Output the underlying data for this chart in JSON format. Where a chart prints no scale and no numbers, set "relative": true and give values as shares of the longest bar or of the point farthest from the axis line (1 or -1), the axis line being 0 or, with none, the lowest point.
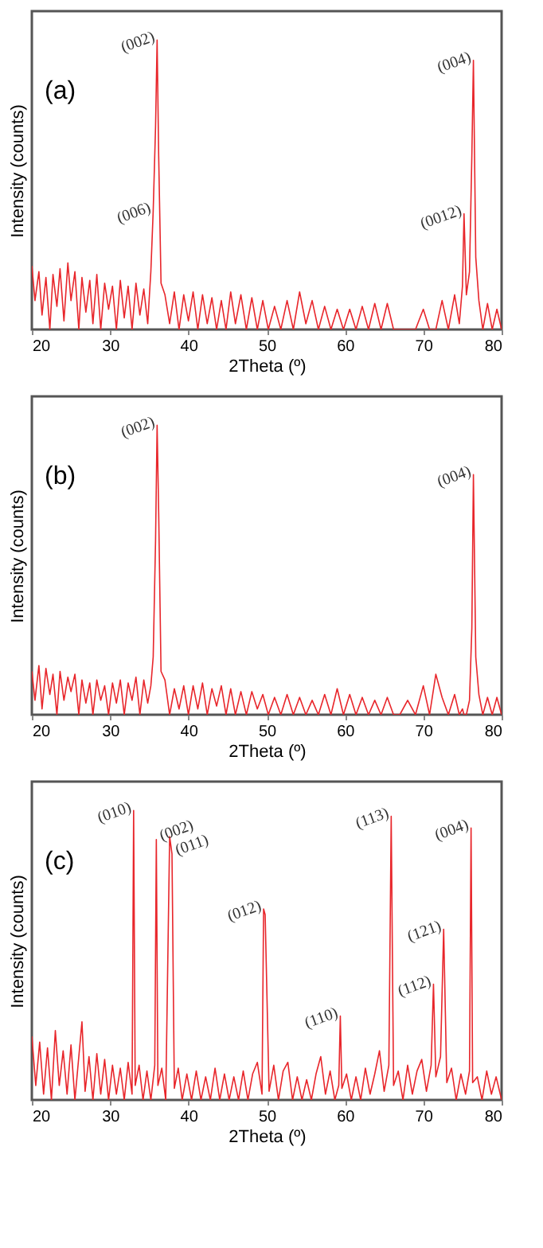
{
  "chart_data": [
    {
      "type": "line",
      "title": "(a)",
      "xlabel": "2Theta (º)",
      "ylabel": "Intensity (counts)",
      "relative": true,
      "xlim": [
        20,
        80
      ],
      "xticks": [
        20,
        30,
        40,
        50,
        60,
        70,
        80
      ],
      "x": [
        20,
        20.4,
        20.9,
        21.3,
        21.8,
        22.3,
        22.7,
        23.2,
        23.6,
        24.1,
        24.6,
        25,
        25.5,
        26,
        26.4,
        26.9,
        27.4,
        27.8,
        28.3,
        28.8,
        29.3,
        29.8,
        30.3,
        30.8,
        31.3,
        31.8,
        32.3,
        32.8,
        33.3,
        33.8,
        34.3,
        34.8,
        35.2,
        35.5,
        35.8,
        36.0,
        36.2,
        36.5,
        37,
        37.6,
        38.2,
        38.8,
        39.4,
        40,
        40.6,
        41.2,
        41.8,
        42.4,
        43,
        43.6,
        44.2,
        44.8,
        45.4,
        46,
        46.7,
        47.4,
        48.1,
        48.8,
        49.5,
        50.2,
        51,
        51.8,
        52.6,
        53.4,
        54.2,
        55,
        55.8,
        56.6,
        57.4,
        58.2,
        59,
        59.8,
        60.6,
        61.4,
        62.2,
        63,
        63.8,
        64.6,
        65.4,
        66.2,
        67,
        68,
        69,
        70,
        70.8,
        71.6,
        72.4,
        73.2,
        74,
        74.6,
        75,
        75.2,
        75.5,
        75.9,
        76.2,
        76.4,
        76.7,
        77.1,
        77.6,
        78.2,
        78.8,
        79.4,
        80
      ],
      "series": [
        {
          "color": "#e8262b",
          "values": [
            0.22,
            0.1,
            0.2,
            0.05,
            0.18,
            0.0,
            0.19,
            0.08,
            0.21,
            0.03,
            0.23,
            0.1,
            0.2,
            0.0,
            0.18,
            0.06,
            0.17,
            0.02,
            0.19,
            0.0,
            0.16,
            0.07,
            0.15,
            0.0,
            0.17,
            0.04,
            0.15,
            0.0,
            0.16,
            0.05,
            0.14,
            0.02,
            0.2,
            0.41,
            0.7,
            1,
            0.6,
            0.16,
            0.12,
            0.02,
            0.13,
            0.0,
            0.12,
            0.03,
            0.13,
            0.0,
            0.12,
            0.02,
            0.11,
            0.0,
            0.1,
            0.0,
            0.13,
            0.02,
            0.12,
            0.0,
            0.11,
            0.0,
            0.1,
            0.0,
            0.08,
            0.0,
            0.1,
            0.0,
            0.13,
            0.02,
            0.1,
            0.0,
            0.08,
            0.0,
            0.07,
            0.0,
            0.07,
            0.0,
            0.08,
            0.0,
            0.09,
            0.0,
            0.09,
            0.0,
            0.0,
            0.0,
            0.0,
            0.07,
            0.0,
            0.0,
            0.1,
            0.0,
            0.12,
            0.02,
            0.15,
            0.4,
            0.12,
            0.2,
            0.6,
            0.93,
            0.25,
            0.1,
            0.0,
            0.09,
            0.0,
            0.07,
            0.0
          ]
        }
      ],
      "annotations": [
        {
          "text": "(006)",
          "x": 35.5,
          "y": 0.41
        },
        {
          "text": "(002)",
          "x": 36.0,
          "y": 1
        },
        {
          "text": "(0012)",
          "x": 75.2,
          "y": 0.4
        },
        {
          "text": "(004)",
          "x": 76.4,
          "y": 0.93
        }
      ]
    },
    {
      "type": "line",
      "title": "(b)",
      "xlabel": "2Theta (º)",
      "ylabel": "Intensity (counts)",
      "relative": true,
      "xlim": [
        20,
        80
      ],
      "xticks": [
        20,
        30,
        40,
        50,
        60,
        70,
        80
      ],
      "x": [
        20,
        20.4,
        20.9,
        21.3,
        21.8,
        22.3,
        22.7,
        23.2,
        23.6,
        24.1,
        24.6,
        25,
        25.5,
        26,
        26.4,
        26.9,
        27.4,
        27.8,
        28.3,
        28.8,
        29.3,
        29.8,
        30.3,
        30.8,
        31.3,
        31.8,
        32.3,
        32.8,
        33.3,
        33.8,
        34.3,
        34.8,
        35.2,
        35.5,
        35.8,
        36.0,
        36.2,
        36.5,
        37,
        37.6,
        38.2,
        38.8,
        39.4,
        40,
        40.6,
        41.2,
        41.8,
        42.4,
        43,
        43.6,
        44.2,
        44.8,
        45.4,
        46,
        46.7,
        47.4,
        48.1,
        48.8,
        49.5,
        50.2,
        51,
        51.8,
        52.6,
        53.4,
        54.2,
        55,
        55.8,
        56.6,
        57.4,
        58.2,
        59,
        59.8,
        60.6,
        61.4,
        62.2,
        63,
        63.8,
        64.6,
        65.4,
        66.2,
        67,
        68,
        69,
        70,
        70.8,
        71.6,
        72.4,
        73.2,
        74,
        74.6,
        75,
        75.2,
        75.5,
        75.9,
        76.2,
        76.4,
        76.7,
        77.1,
        77.6,
        78.2,
        78.8,
        79.4,
        80
      ],
      "series": [
        {
          "color": "#e8262b",
          "values": [
            0.15,
            0.05,
            0.17,
            0.02,
            0.16,
            0.07,
            0.14,
            0.0,
            0.15,
            0.05,
            0.13,
            0.08,
            0.14,
            0.0,
            0.12,
            0.04,
            0.11,
            0.0,
            0.12,
            0.05,
            0.1,
            0.0,
            0.11,
            0.04,
            0.12,
            0.0,
            0.11,
            0.05,
            0.13,
            0.0,
            0.12,
            0.04,
            0.1,
            0.2,
            0.6,
            1,
            0.7,
            0.15,
            0.12,
            0.0,
            0.09,
            0.02,
            0.1,
            0.0,
            0.1,
            0.02,
            0.11,
            0.0,
            0.09,
            0.03,
            0.1,
            0.0,
            0.09,
            0.0,
            0.08,
            0.0,
            0.08,
            0.02,
            0.07,
            0.0,
            0.06,
            0.0,
            0.07,
            0.0,
            0.06,
            0.0,
            0.05,
            0.0,
            0.07,
            0.0,
            0.09,
            0.0,
            0.07,
            0.0,
            0.06,
            0.0,
            0.05,
            0.0,
            0.06,
            0.0,
            0.0,
            0.05,
            0.0,
            0.1,
            0.0,
            0.14,
            0.06,
            0.0,
            0.07,
            0.0,
            0.02,
            0.0,
            0.0,
            0.05,
            0.3,
            0.83,
            0.2,
            0.07,
            0.0,
            0.06,
            0.0,
            0.06,
            0.0
          ]
        }
      ],
      "annotations": [
        {
          "text": "(002)",
          "x": 36.0,
          "y": 1
        },
        {
          "text": "(004)",
          "x": 76.4,
          "y": 0.83
        }
      ]
    },
    {
      "type": "line",
      "title": "(c)",
      "xlabel": "2Theta (º)",
      "ylabel": "Intensity (counts)",
      "relative": true,
      "xlim": [
        20,
        80
      ],
      "xticks": [
        20,
        30,
        40,
        50,
        60,
        70,
        80
      ],
      "x": [
        20,
        20.5,
        21,
        21.5,
        22,
        22.5,
        23,
        23.5,
        24,
        24.5,
        25,
        25.5,
        26,
        26.4,
        26.8,
        27.3,
        27.8,
        28.3,
        28.8,
        29.3,
        29.8,
        30.3,
        30.8,
        31.3,
        31.8,
        32.3,
        32.8,
        33.0,
        33.2,
        33.7,
        34.2,
        34.7,
        35.2,
        35.7,
        35.9,
        36.1,
        36.6,
        37.1,
        37.6,
        37.9,
        38.2,
        38.7,
        39.2,
        39.8,
        40.4,
        41,
        41.6,
        42.2,
        42.8,
        43.4,
        44,
        44.6,
        45.2,
        45.8,
        46.4,
        47,
        47.6,
        48.2,
        48.8,
        49.4,
        49.6,
        49.8,
        50.3,
        50.9,
        51.5,
        52.1,
        52.7,
        53.3,
        53.9,
        54.5,
        55.1,
        55.7,
        56.3,
        56.9,
        57.5,
        58.1,
        58.7,
        59.2,
        59.4,
        59.6,
        60.2,
        60.8,
        61.4,
        62,
        62.6,
        63.2,
        63.8,
        64.4,
        65,
        65.6,
        65.9,
        66.2,
        66.8,
        67.4,
        68,
        68.6,
        69.2,
        69.8,
        70.4,
        71,
        71.3,
        71.6,
        72.2,
        72.6,
        73,
        73.6,
        74.2,
        74.8,
        75.4,
        75.9,
        76.1,
        76.3,
        76.9,
        77.5,
        78.1,
        78.7,
        79.3,
        80
      ],
      "series": [
        {
          "color": "#e8262b",
          "values": [
            0.22,
            0.05,
            0.2,
            0.02,
            0.18,
            0.0,
            0.24,
            0.05,
            0.17,
            0.02,
            0.19,
            0.0,
            0.15,
            0.27,
            0.03,
            0.15,
            0.0,
            0.16,
            0.02,
            0.14,
            0.0,
            0.12,
            0.02,
            0.11,
            0.0,
            0.13,
            0.02,
            1,
            0.05,
            0.12,
            0.0,
            0.1,
            0.0,
            0.12,
            0.9,
            0.05,
            0.11,
            0.0,
            0.91,
            0.85,
            0.04,
            0.11,
            0.0,
            0.09,
            0.0,
            0.1,
            0.0,
            0.08,
            0.0,
            0.11,
            0.0,
            0.09,
            0.0,
            0.08,
            0.0,
            0.1,
            0.0,
            0.09,
            0.13,
            0.02,
            0.66,
            0.64,
            0.03,
            0.12,
            0.0,
            0.1,
            0.13,
            0.0,
            0.08,
            0.0,
            0.07,
            0.0,
            0.09,
            0.15,
            0.02,
            0.1,
            0.0,
            0.05,
            0.29,
            0.04,
            0.09,
            0.0,
            0.08,
            0.0,
            0.11,
            0.02,
            0.09,
            0.17,
            0.03,
            0.12,
            0.98,
            0.05,
            0.1,
            0.0,
            0.12,
            0.02,
            0.1,
            0.14,
            0.03,
            0.12,
            0.4,
            0.08,
            0.15,
            0.59,
            0.06,
            0.11,
            0.0,
            0.09,
            0.02,
            0.1,
            0.94,
            0.06,
            0.08,
            0.0,
            0.1,
            0.02,
            0.08,
            0.0
          ]
        }
      ],
      "annotations": [
        {
          "text": "(010)",
          "x": 33.0,
          "y": 1
        },
        {
          "text": "(002)",
          "x": 35.9,
          "y": 0.9
        },
        {
          "text": "(011)",
          "x": 37.9,
          "y": 0.85
        },
        {
          "text": "(012)",
          "x": 49.6,
          "y": 0.66
        },
        {
          "text": "(110)",
          "x": 59.4,
          "y": 0.29
        },
        {
          "text": "(113)",
          "x": 65.9,
          "y": 0.98
        },
        {
          "text": "(112)",
          "x": 71.3,
          "y": 0.4
        },
        {
          "text": "(121)",
          "x": 72.6,
          "y": 0.59
        },
        {
          "text": "(004)",
          "x": 76.1,
          "y": 0.94
        }
      ]
    }
  ]
}
